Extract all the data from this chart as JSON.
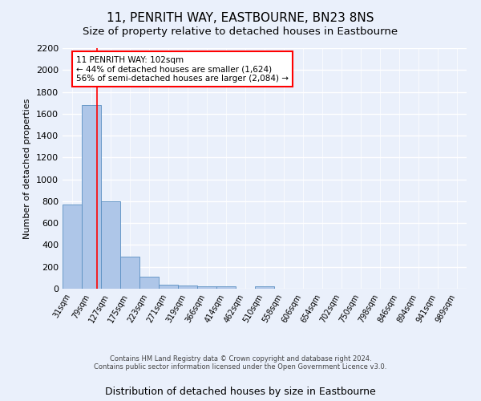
{
  "title": "11, PENRITH WAY, EASTBOURNE, BN23 8NS",
  "subtitle": "Size of property relative to detached houses in Eastbourne",
  "xlabel": "Distribution of detached houses by size in Eastbourne",
  "ylabel": "Number of detached properties",
  "bar_labels": [
    "31sqm",
    "79sqm",
    "127sqm",
    "175sqm",
    "223sqm",
    "271sqm",
    "319sqm",
    "366sqm",
    "414sqm",
    "462sqm",
    "510sqm",
    "558sqm",
    "606sqm",
    "654sqm",
    "702sqm",
    "750sqm",
    "798sqm",
    "846sqm",
    "894sqm",
    "941sqm",
    "989sqm"
  ],
  "bar_values": [
    770,
    1680,
    800,
    295,
    110,
    40,
    28,
    25,
    22,
    0,
    25,
    0,
    0,
    0,
    0,
    0,
    0,
    0,
    0,
    0,
    0
  ],
  "bar_color": "#aec6e8",
  "bar_edge_color": "#5a8fc2",
  "ylim": [
    0,
    2200
  ],
  "yticks": [
    0,
    200,
    400,
    600,
    800,
    1000,
    1200,
    1400,
    1600,
    1800,
    2000,
    2200
  ],
  "red_line_x": 1.28,
  "annotation_box_text": "11 PENRITH WAY: 102sqm\n← 44% of detached houses are smaller (1,624)\n56% of semi-detached houses are larger (2,084) →",
  "footer_line1": "Contains HM Land Registry data © Crown copyright and database right 2024.",
  "footer_line2": "Contains public sector information licensed under the Open Government Licence v3.0.",
  "background_color": "#eaf0fb",
  "grid_color": "#ffffff",
  "title_fontsize": 11,
  "label_fontsize": 9
}
